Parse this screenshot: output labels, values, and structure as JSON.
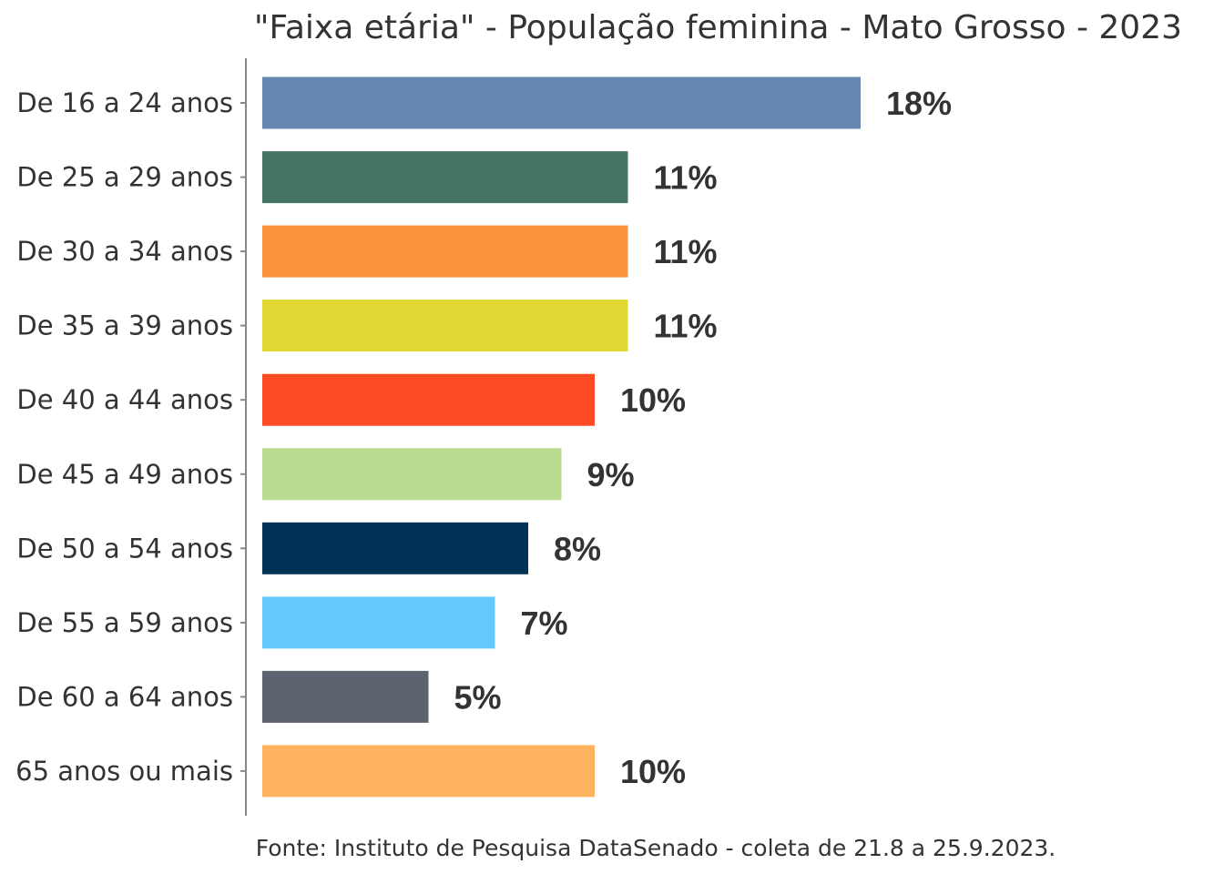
{
  "chart_data": {
    "type": "bar",
    "orientation": "horizontal",
    "title": "\"Faixa etária\" - População feminina - Mato Grosso - 2023",
    "caption": "Fonte: Instituto de Pesquisa DataSenado - coleta de 21.8 a 25.9.2023.",
    "categories": [
      "De 16 a 24 anos",
      "De 25 a 29 anos",
      "De 30 a 34 anos",
      "De 35 a 39 anos",
      "De 40 a 44 anos",
      "De 45 a 49 anos",
      "De 50 a 54 anos",
      "De 55 a 59 anos",
      "De 60 a 64 anos",
      "65 anos ou mais"
    ],
    "values": [
      18,
      11,
      11,
      11,
      10,
      9,
      8,
      7,
      5,
      10
    ],
    "value_labels": [
      "18%",
      "11%",
      "11%",
      "11%",
      "10%",
      "9%",
      "8%",
      "7%",
      "5%",
      "10%"
    ],
    "colors": [
      "#6688B0",
      "#467564",
      "#FB923D",
      "#E3D736",
      "#FE4A22",
      "#B9DB90",
      "#003256",
      "#66C9FE",
      "#5E646F",
      "#FDB35D"
    ],
    "xlim": [
      0,
      25
    ],
    "grid": false,
    "legend": "none"
  }
}
